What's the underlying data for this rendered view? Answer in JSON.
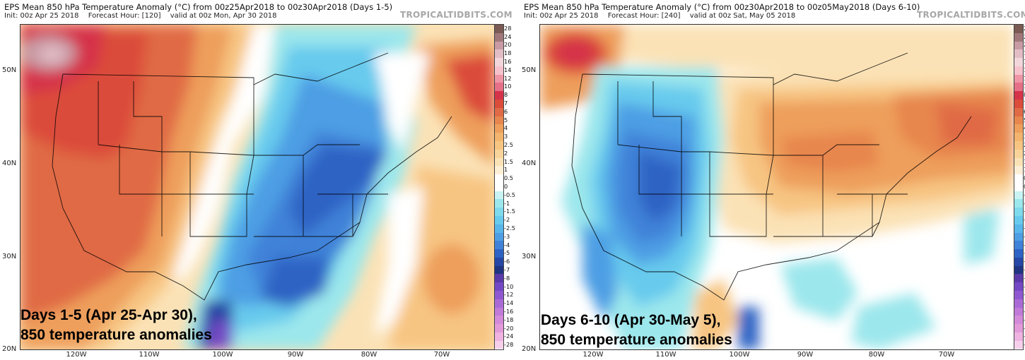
{
  "brand": "TROPICALTIDBITS.COM",
  "colorbar": {
    "labels": [
      "28",
      "24",
      "20",
      "18",
      "16",
      "14",
      "12",
      "10",
      "8",
      "7",
      "6",
      "5",
      "4",
      "3",
      "2.5",
      "2",
      "1.5",
      "1",
      "0.5",
      "0",
      "-0.5",
      "-1",
      "-1.5",
      "-2",
      "-2.5",
      "-3",
      "-4",
      "-5",
      "-6",
      "-7",
      "-8",
      "-10",
      "-12",
      "-14",
      "-16",
      "-18",
      "-20",
      "-24",
      "-28"
    ],
    "colors": [
      "#7a5a52",
      "#a0787a",
      "#c89aa4",
      "#e2bdc6",
      "#f2d6dc",
      "#f6c2cc",
      "#ef96a6",
      "#e67088",
      "#d5334a",
      "#db4c3b",
      "#e06a45",
      "#e7864e",
      "#ee9f5c",
      "#f3b46d",
      "#f7c582",
      "#f9d49a",
      "#fbe2b6",
      "#fdefd6",
      "#ffffff",
      "#ffffff",
      "#c8f3f2",
      "#9be7ec",
      "#7fdaec",
      "#68caed",
      "#59b6ea",
      "#4e9ee4",
      "#3f82d8",
      "#2d63c4",
      "#2547a5",
      "#1f3582",
      "#5a3aa8",
      "#7448c4",
      "#9058d0",
      "#aa6ad6",
      "#c07ad8",
      "#d38ad8",
      "#e29ad9",
      "#eeb3e1",
      "#f6d0ea"
    ]
  },
  "left": {
    "title": "EPS Mean 850 hPa Temperature Anomaly (°C) from 00z25Apr2018 to 00z30Apr2018 (Days 1-5)",
    "init": "Init: 00z Apr 25 2018",
    "forecast_hour": "Forecast Hour: [120]",
    "valid": "valid at 00z Mon, Apr 30 2018",
    "caption_line1": "Days 1-5 (Apr 25-Apr 30),",
    "caption_line2": "850 temperature anomalies",
    "lat_labels": [
      "50N",
      "40N",
      "30N",
      "20N"
    ],
    "lon_labels": [
      "120W",
      "110W",
      "100W",
      "90W",
      "80W",
      "70W"
    ]
  },
  "right": {
    "title": "EPS Mean 850 hPa Temperature Anomaly (°C) from 00z30Apr2018 to 00z05May2018 (Days 6-10)",
    "init": "Init: 00z Apr 25 2018",
    "forecast_hour": "Forecast Hour: [240]",
    "valid": "valid at 00z Sat, May 05 2018",
    "caption_line1": "Days 6-10 (Apr 30-May 5),",
    "caption_line2": "850 temperature anomalies",
    "lat_labels": [
      "50N",
      "40N",
      "30N",
      "20N"
    ],
    "lon_labels": [
      "120W",
      "110W",
      "100W",
      "90W",
      "80W",
      "70W"
    ]
  }
}
